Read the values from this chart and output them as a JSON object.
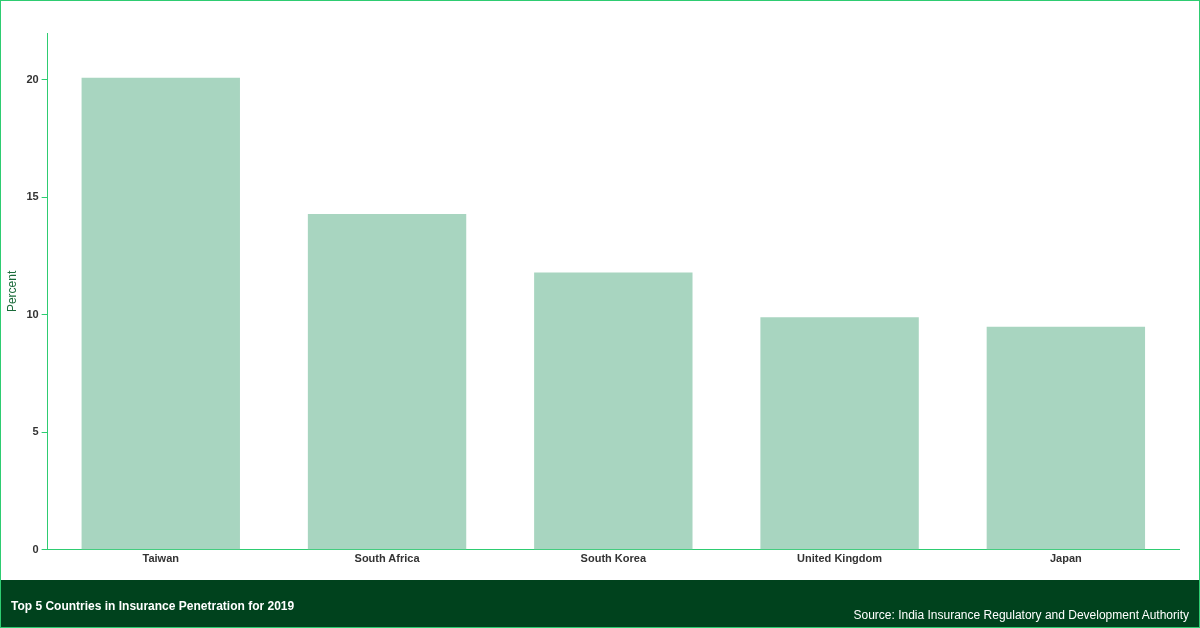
{
  "chart_data": {
    "type": "bar",
    "title": "Top 5 Countries in Insurance Penetration for 2019",
    "ylabel": "Percent",
    "categories": [
      "Taiwan",
      "South Africa",
      "South Korea",
      "United Kingdom",
      "Japan"
    ],
    "values": [
      20.1,
      14.3,
      11.8,
      9.9,
      9.5
    ],
    "color": "#a8d5c0",
    "ylim": [
      0,
      22
    ],
    "yticks": [
      0,
      5,
      10,
      15,
      20
    ],
    "grid": false,
    "legend": false,
    "annotations": [
      "Source: India Insurance Regulatory and Development Authority"
    ]
  }
}
